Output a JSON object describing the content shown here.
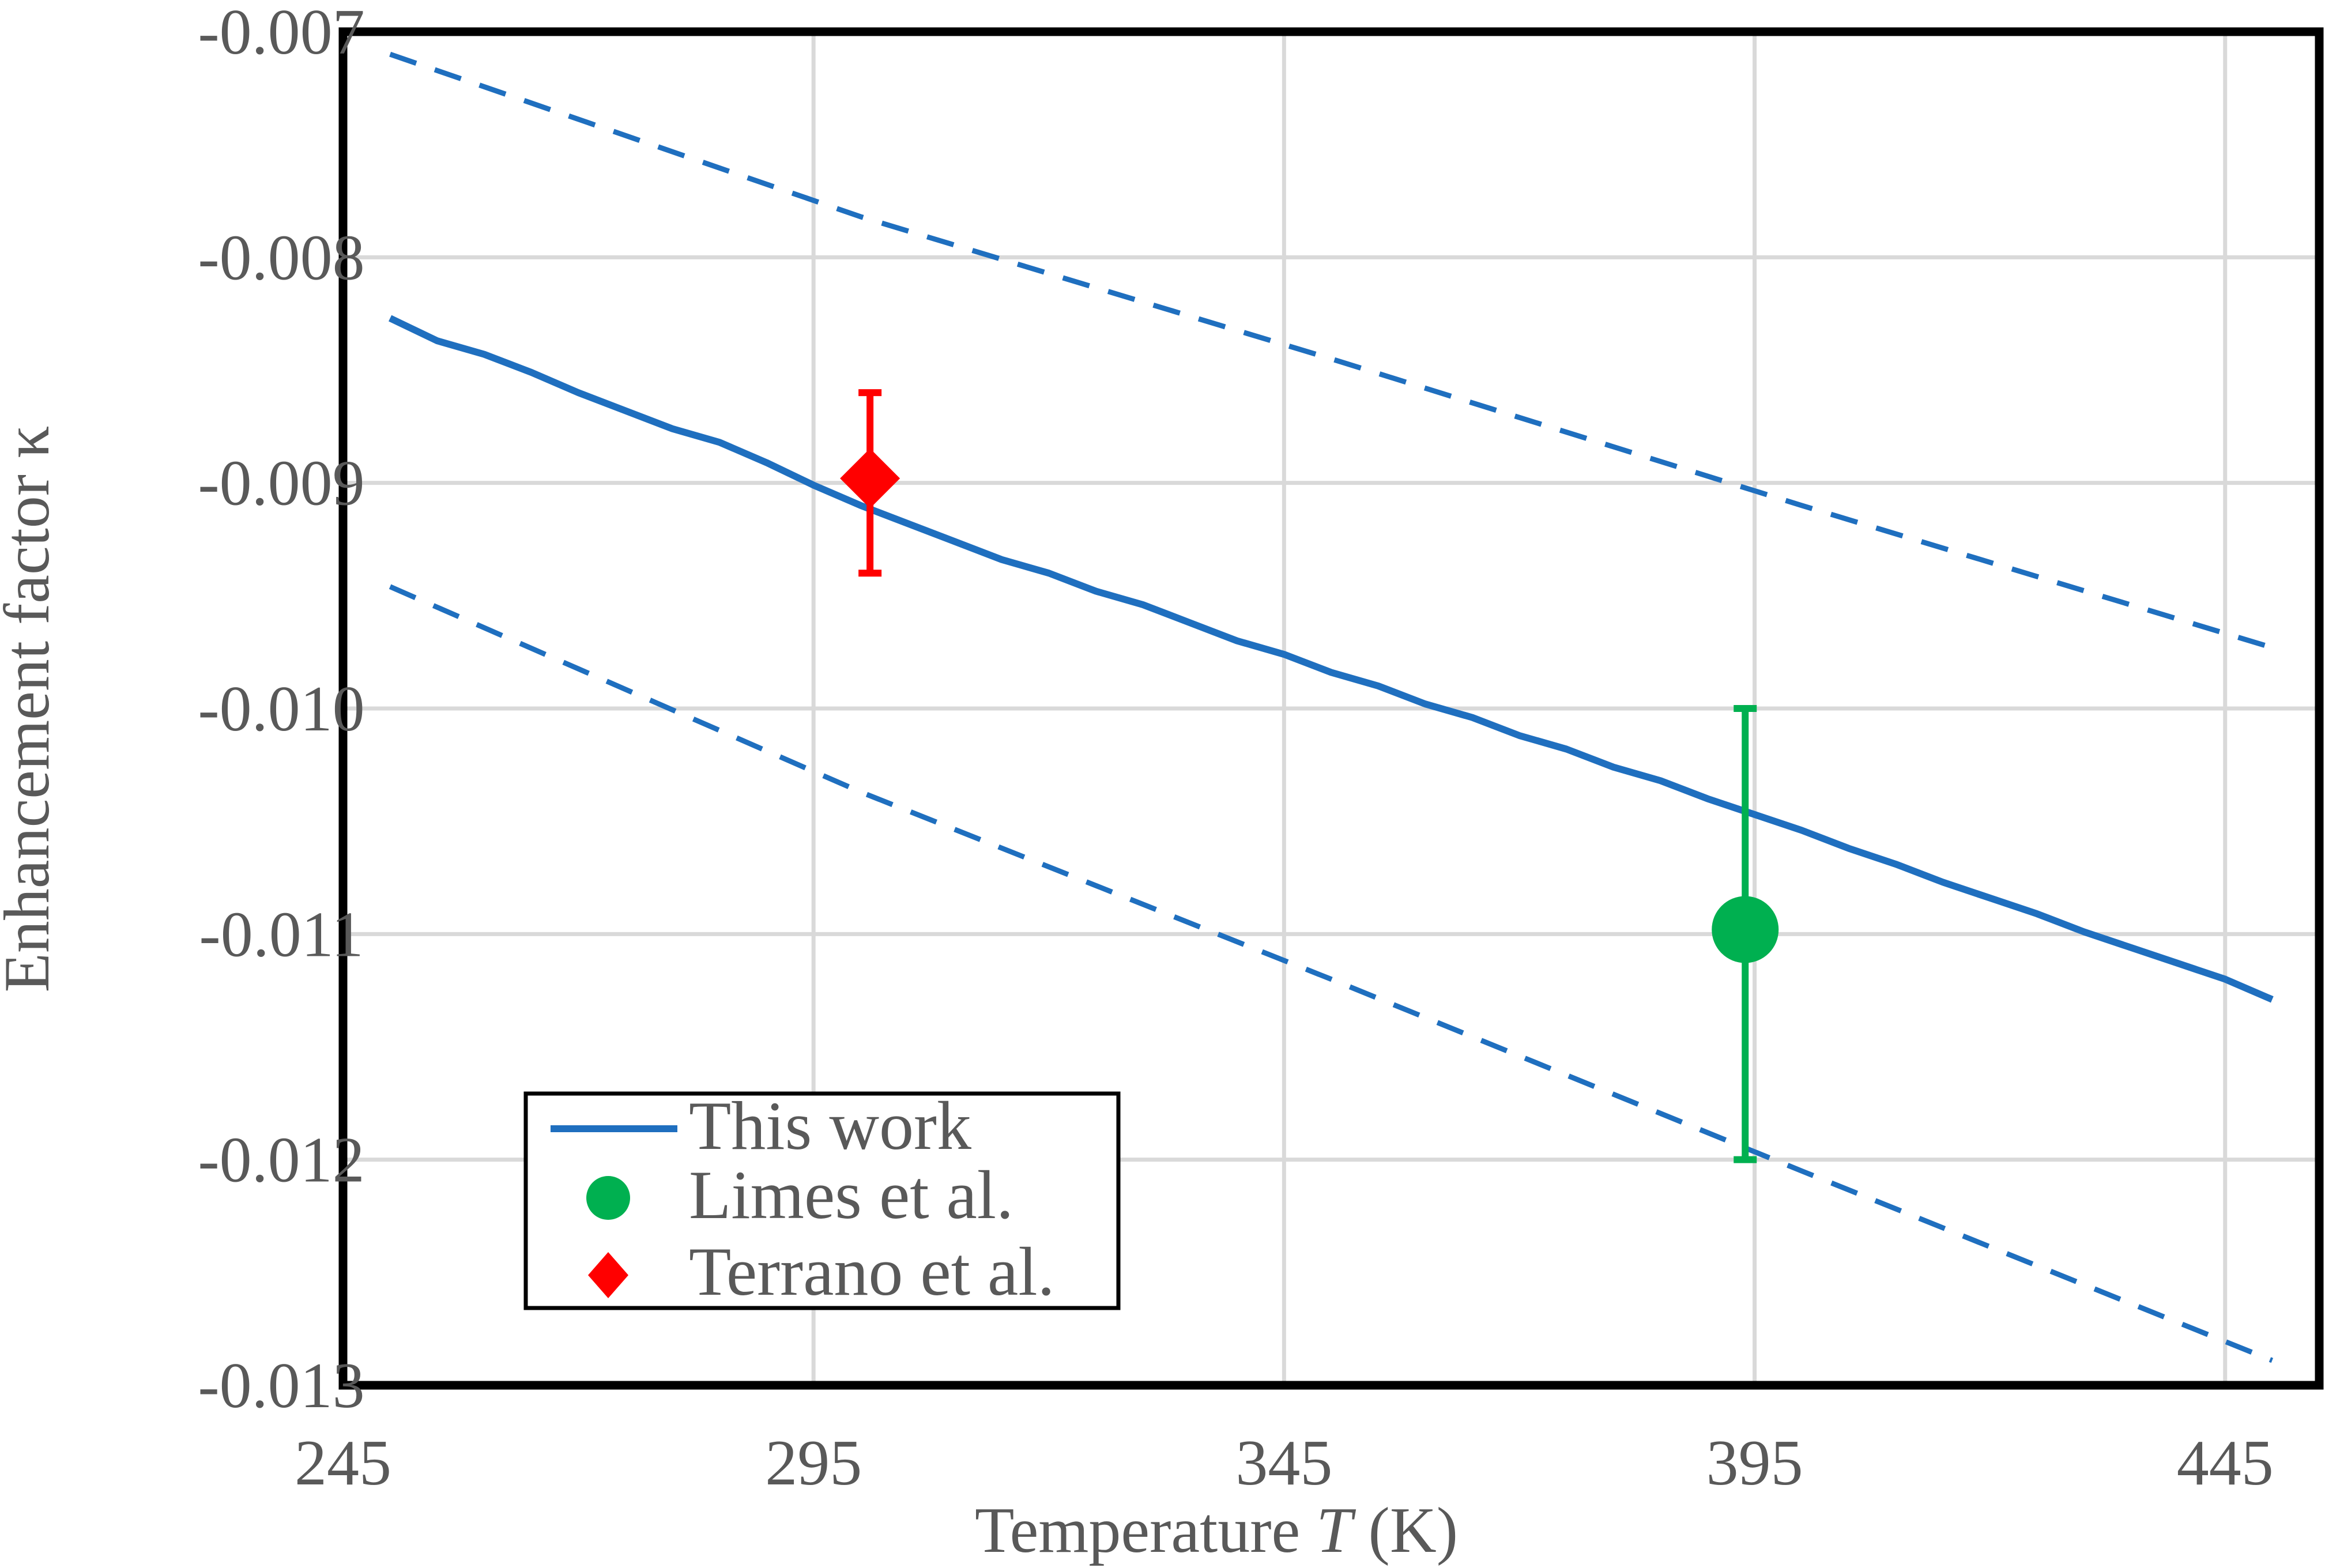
{
  "chart_data": {
    "type": "line",
    "xlabel_prefix": "Temperature ",
    "xlabel_var": "T",
    "xlabel_suffix": " (K)",
    "ylabel": "Enhancement factor κ",
    "xlim": [
      245,
      455
    ],
    "ylim": [
      -0.013,
      -0.007
    ],
    "x_ticks": [
      245,
      295,
      345,
      395,
      445
    ],
    "x_tick_labels": [
      "245",
      "295",
      "345",
      "395",
      "445"
    ],
    "y_ticks": [
      -0.007,
      -0.008,
      -0.009,
      -0.01,
      -0.011,
      -0.012,
      -0.013
    ],
    "y_tick_labels": [
      "-0.007",
      "-0.008",
      "-0.009",
      "-0.010",
      "-0.011",
      "-0.012",
      "-0.013"
    ],
    "grid": true,
    "legend_position": "bottom-left",
    "series": [
      {
        "name": "This work",
        "style": "solid",
        "color": "#1f6fbf",
        "x": [
          250,
          255,
          260,
          265,
          270,
          275,
          280,
          285,
          290,
          295,
          300,
          305,
          310,
          315,
          320,
          325,
          330,
          335,
          340,
          345,
          350,
          355,
          360,
          365,
          370,
          375,
          380,
          385,
          390,
          395,
          400,
          405,
          410,
          415,
          420,
          425,
          430,
          435,
          440,
          445,
          450
        ],
        "y": [
          -0.00827,
          -0.00837,
          -0.00843,
          -0.00851,
          -0.0086,
          -0.00868,
          -0.00876,
          -0.00882,
          -0.00891,
          -0.00901,
          -0.0091,
          -0.00918,
          -0.00926,
          -0.00934,
          -0.0094,
          -0.00948,
          -0.00954,
          -0.00962,
          -0.0097,
          -0.00976,
          -0.00984,
          -0.0099,
          -0.00998,
          -0.01004,
          -0.01012,
          -0.01018,
          -0.01026,
          -0.01032,
          -0.0104,
          -0.01047,
          -0.01054,
          -0.01062,
          -0.01069,
          -0.01077,
          -0.01084,
          -0.01091,
          -0.01099,
          -0.01106,
          -0.01113,
          -0.0112,
          -0.01129
        ]
      },
      {
        "name": "",
        "style": "dashed",
        "color": "#1f6fbf",
        "x": [
          250,
          300,
          350,
          400,
          450
        ],
        "y": [
          -0.0071,
          -0.00782,
          -0.00845,
          -0.0091,
          -0.00973
        ]
      },
      {
        "name": "",
        "style": "dashed",
        "color": "#1f6fbf",
        "x": [
          250,
          300,
          350,
          400,
          450
        ],
        "y": [
          -0.00946,
          -0.01037,
          -0.0112,
          -0.01205,
          -0.01289
        ]
      }
    ],
    "points": [
      {
        "name": "Limes et al.",
        "marker": "circle",
        "color": "#00b050",
        "x": 394,
        "y": -0.01098,
        "err_low": -0.012,
        "err_high": -0.01
      },
      {
        "name": "Terrano et al.",
        "marker": "diamond",
        "color": "#ff0000",
        "x": 301,
        "y": -0.00898,
        "err_low": -0.0094,
        "err_high": -0.0086
      }
    ]
  }
}
